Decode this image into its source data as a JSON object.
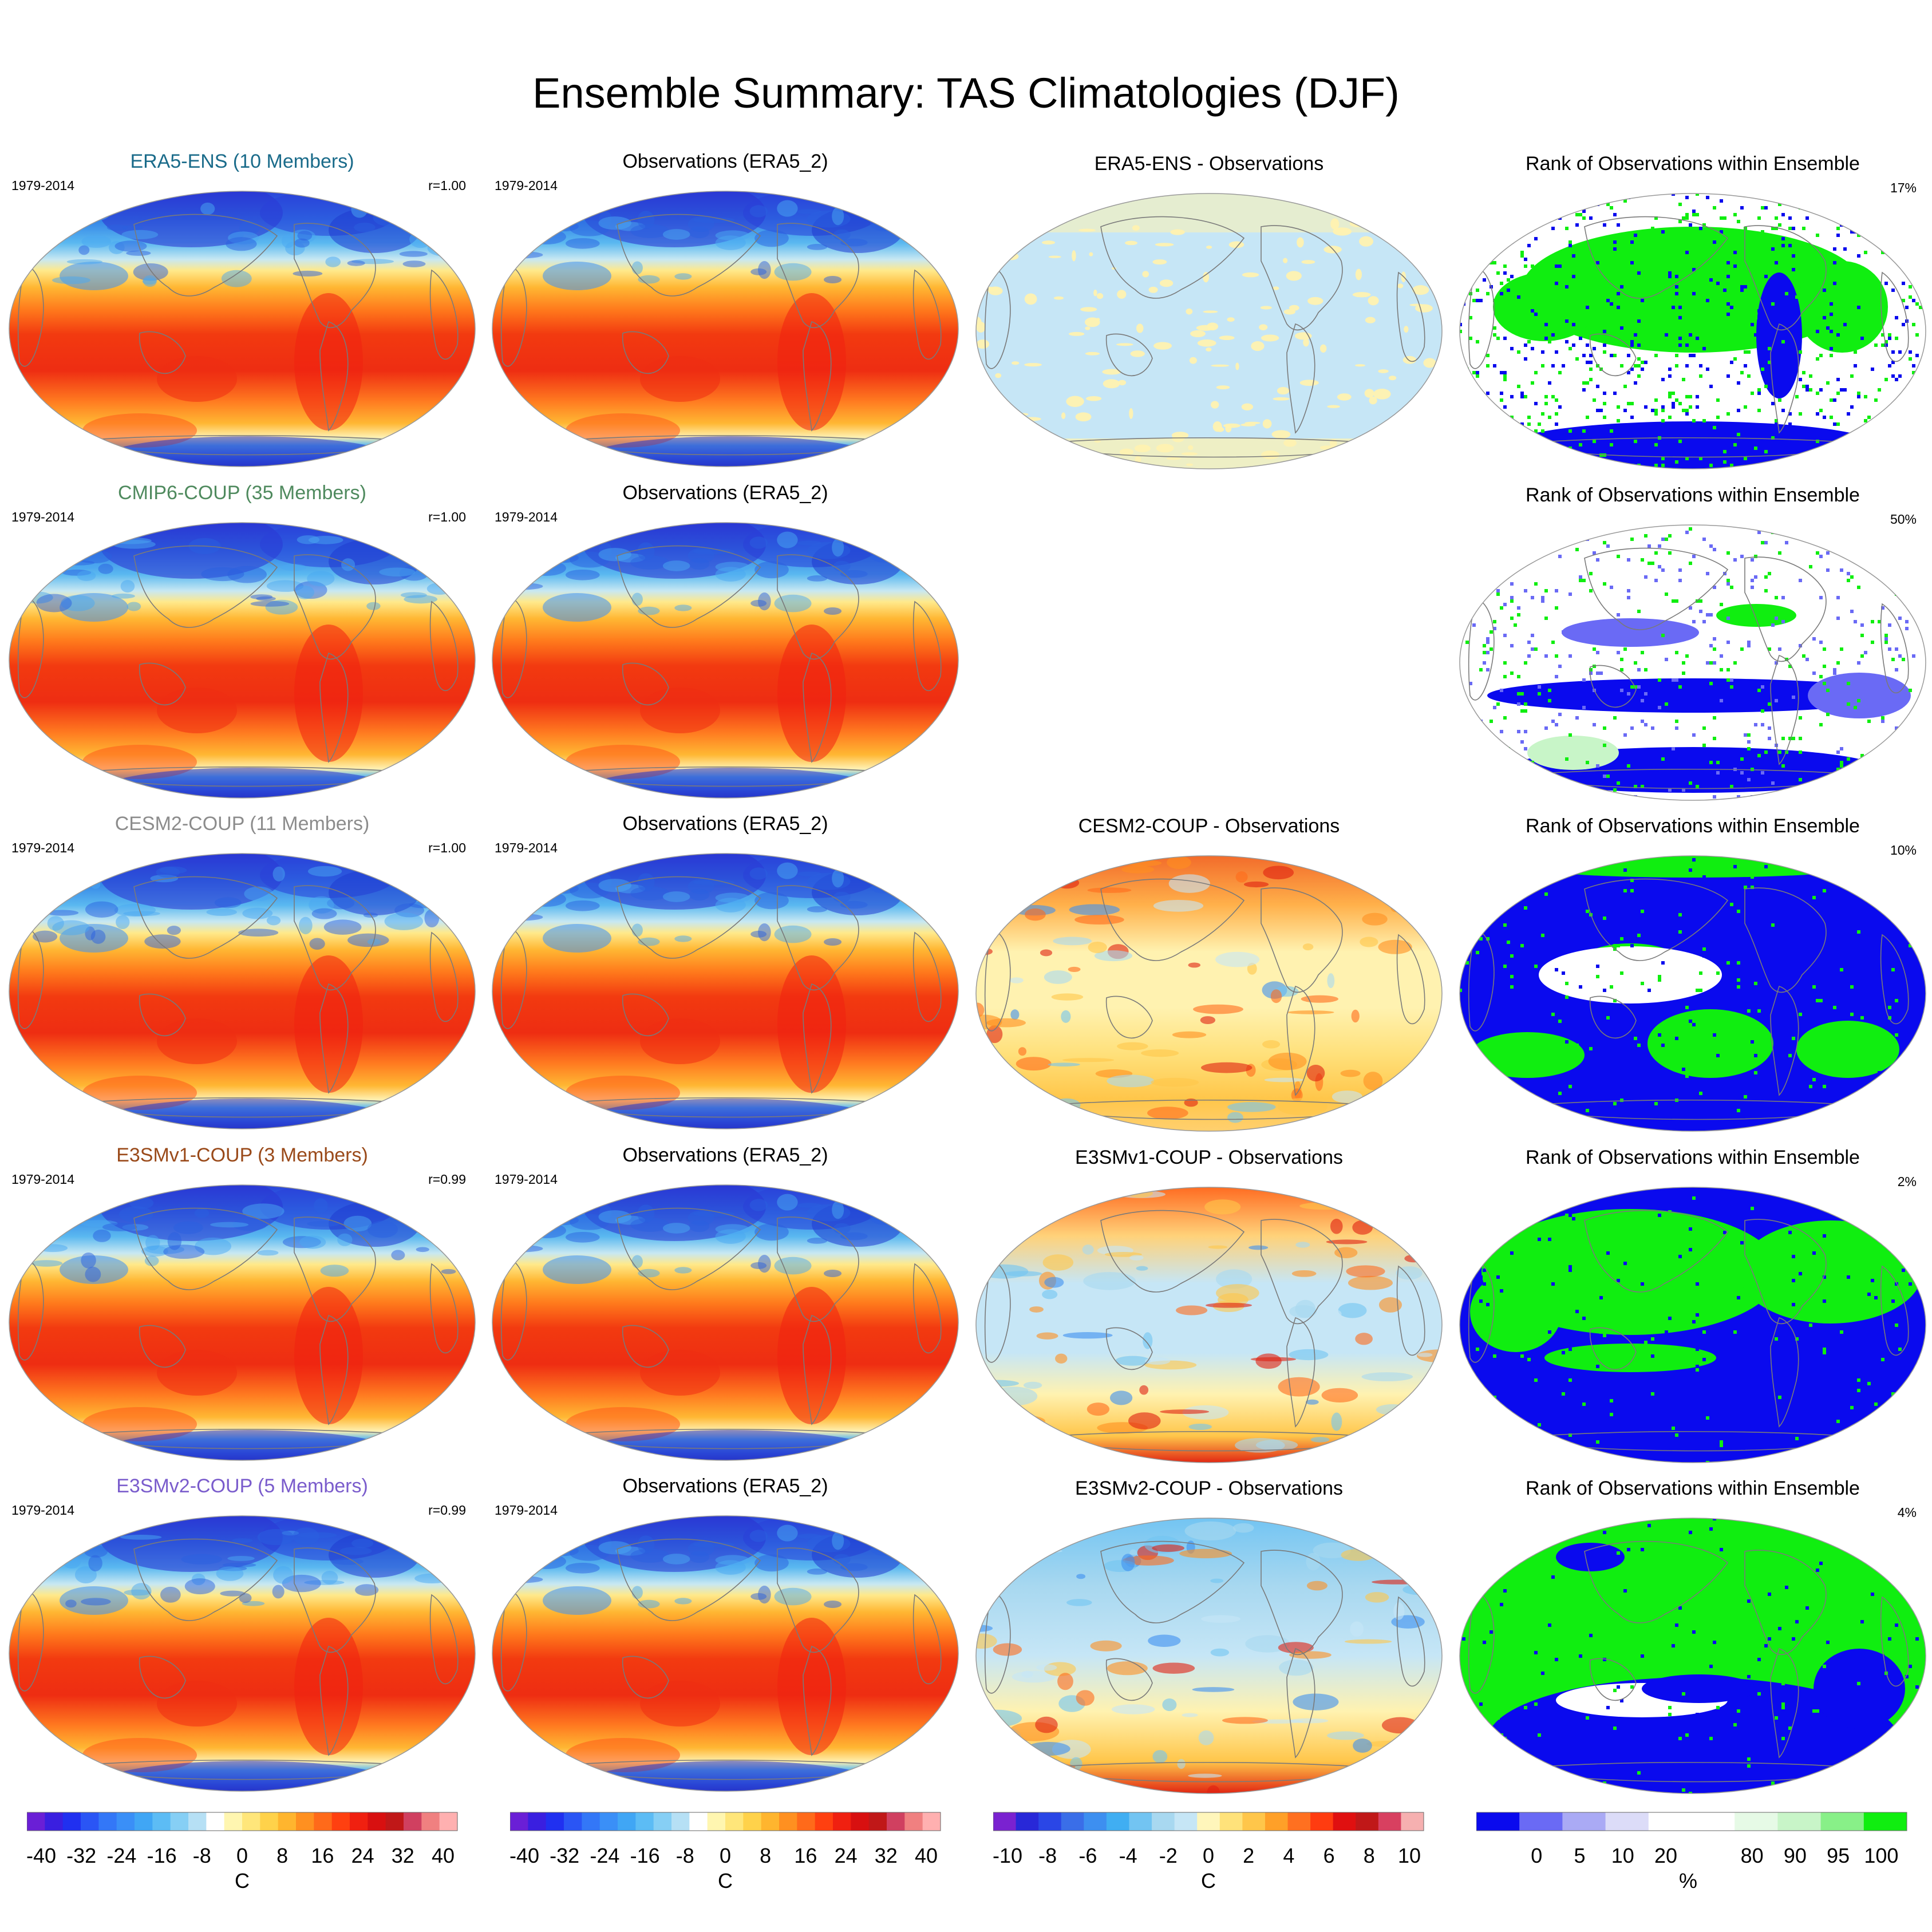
{
  "title": "Ensemble Summary: TAS Climatologies (DJF)",
  "colors": {
    "era5_ens": "#1a6b8a",
    "cmip6": "#4f8a5e",
    "cesm2": "#8c8c8c",
    "e3smv1": "#9a4a1a",
    "e3smv2": "#7a5ccc"
  },
  "rows": [
    {
      "model_label": "ERA5-ENS (10 Members)",
      "model_color": "era5_ens",
      "period": "1979-2014",
      "r": "r=1.00",
      "obs_label": "Observations (ERA5_2)",
      "obs_period": "1979-2014",
      "diff_label": "ERA5-ENS - Observations",
      "diff_style": "era5",
      "rank_label": "Rank of Observations within Ensemble",
      "rank_pct": "17%",
      "rank_style": "era5"
    },
    {
      "model_label": "CMIP6-COUP (35 Members)",
      "model_color": "cmip6",
      "period": "1979-2014",
      "r": "r=1.00",
      "obs_label": "Observations (ERA5_2)",
      "obs_period": "1979-2014",
      "diff_label": "",
      "diff_style": "none",
      "rank_label": "Rank of Observations within Ensemble",
      "rank_pct": "50%",
      "rank_style": "cmip6"
    },
    {
      "model_label": "CESM2-COUP (11 Members)",
      "model_color": "cesm2",
      "period": "1979-2014",
      "r": "r=1.00",
      "obs_label": "Observations (ERA5_2)",
      "obs_period": "1979-2014",
      "diff_label": "CESM2-COUP - Observations",
      "diff_style": "cesm2",
      "rank_label": "Rank of Observations within Ensemble",
      "rank_pct": "10%",
      "rank_style": "cesm2"
    },
    {
      "model_label": "E3SMv1-COUP (3 Members)",
      "model_color": "e3smv1",
      "period": "1979-2014",
      "r": "r=0.99",
      "obs_label": "Observations (ERA5_2)",
      "obs_period": "1979-2014",
      "diff_label": "E3SMv1-COUP - Observations",
      "diff_style": "e3smv1",
      "rank_label": "Rank of Observations within Ensemble",
      "rank_pct": "2%",
      "rank_style": "e3smv1"
    },
    {
      "model_label": "E3SMv2-COUP (5 Members)",
      "model_color": "e3smv2",
      "period": "1979-2014",
      "r": "r=0.99",
      "obs_label": "Observations (ERA5_2)",
      "obs_period": "1979-2014",
      "diff_label": "E3SMv2-COUP - Observations",
      "diff_style": "e3smv2",
      "rank_label": "Rank of Observations within Ensemble",
      "rank_pct": "4%",
      "rank_style": "e3smv2"
    }
  ],
  "colorbars": [
    {
      "name": "tas",
      "colors": [
        "#6a1fd6",
        "#3a1fe0",
        "#2030f0",
        "#2a55f5",
        "#3377f7",
        "#3a8ff7",
        "#40a6f5",
        "#5cbcf5",
        "#86cff5",
        "#b6e0f5",
        "#ffffff",
        "#fff6b0",
        "#ffe67a",
        "#ffd24a",
        "#ffb52e",
        "#ff9020",
        "#ff6a1a",
        "#ff4010",
        "#f02010",
        "#d81010",
        "#c01818",
        "#d04060",
        "#f08080",
        "#ffb0b0"
      ],
      "ticks": [
        "-40",
        "-32",
        "-24",
        "-16",
        "-8",
        "0",
        "8",
        "16",
        "24",
        "32",
        "40"
      ],
      "unit": "C"
    },
    {
      "name": "tas_obs",
      "colors": [
        "#6a1fd6",
        "#3a1fe0",
        "#2030f0",
        "#2a55f5",
        "#3377f7",
        "#3a8ff7",
        "#40a6f5",
        "#5cbcf5",
        "#86cff5",
        "#b6e0f5",
        "#ffffff",
        "#fff6b0",
        "#ffe67a",
        "#ffd24a",
        "#ffb52e",
        "#ff9020",
        "#ff6a1a",
        "#ff4010",
        "#f02010",
        "#d81010",
        "#c01818",
        "#d04060",
        "#f08080",
        "#ffb0b0"
      ],
      "ticks": [
        "-40",
        "-32",
        "-24",
        "-16",
        "-8",
        "0",
        "8",
        "16",
        "24",
        "32",
        "40"
      ],
      "unit": "C"
    },
    {
      "name": "diff",
      "colors": [
        "#7a22d0",
        "#2828d8",
        "#2a46e6",
        "#3a6ee8",
        "#3d8ff0",
        "#40aef2",
        "#72c4f2",
        "#a8d8f0",
        "#c6e6f6",
        "#fff6bb",
        "#ffe27a",
        "#ffc64a",
        "#ffa028",
        "#ff7020",
        "#ff3c10",
        "#e01010",
        "#c01818",
        "#d84060",
        "#f6b0b0"
      ],
      "ticks": [
        "-10",
        "-8",
        "-6",
        "-4",
        "-2",
        "0",
        "2",
        "4",
        "6",
        "8",
        "10"
      ],
      "unit": "C"
    },
    {
      "name": "rank",
      "colors": [
        "#0a0aee",
        "#6a6af5",
        "#aaaaf5",
        "#dcdcf8",
        "#ffffff",
        "#ffffff",
        "#e6fae6",
        "#c8f5c8",
        "#88f088",
        "#10ee10"
      ],
      "ticks": [
        "0",
        "5",
        "10",
        "20",
        "80",
        "90",
        "95",
        "100"
      ],
      "unit": "%"
    }
  ]
}
